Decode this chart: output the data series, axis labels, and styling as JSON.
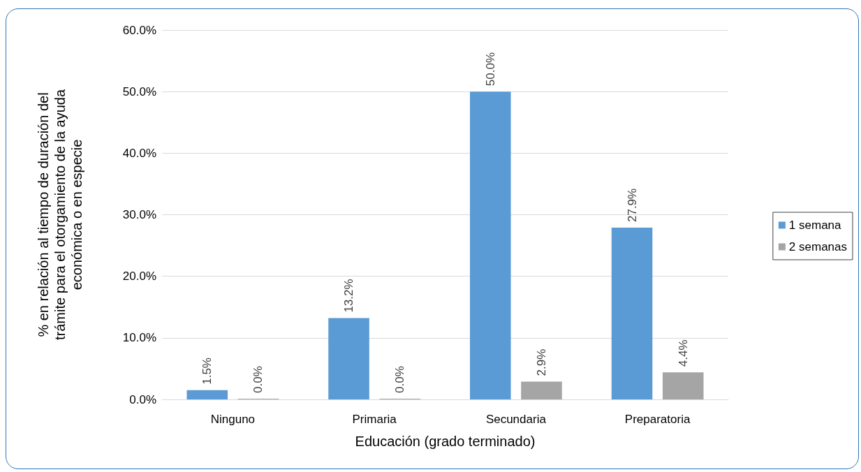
{
  "chart_data": {
    "type": "bar",
    "xlabel": "Educación (grado terminado)",
    "ylabel": "% en relación al tiempo de duración del\ntrámite para el otorgamiento de la ayuda\neconómica o en especie",
    "categories": [
      "Ninguno",
      "Primaria",
      "Secundaria",
      "Preparatoria"
    ],
    "series": [
      {
        "name": "1 semana",
        "color": "#5b9bd5",
        "values": [
          1.5,
          13.2,
          50.0,
          27.9
        ],
        "value_labels": [
          "1.5%",
          "13.2%",
          "50.0%",
          "27.9%"
        ]
      },
      {
        "name": "2 semanas",
        "color": "#a5a5a5",
        "values": [
          0.0,
          0.0,
          2.9,
          4.4
        ],
        "value_labels": [
          "0.0%",
          "0.0%",
          "2.9%",
          "4.4%"
        ]
      }
    ],
    "ylim": [
      0,
      60
    ],
    "yticks": [
      {
        "value": 0,
        "label": "0.0%"
      },
      {
        "value": 10,
        "label": "10.0%"
      },
      {
        "value": 20,
        "label": "20.0%"
      },
      {
        "value": 30,
        "label": "30.0%"
      },
      {
        "value": 40,
        "label": "40.0%"
      },
      {
        "value": 50,
        "label": "50.0%"
      },
      {
        "value": 60,
        "label": "60.0%"
      }
    ],
    "grid": "y",
    "legend": "right"
  }
}
